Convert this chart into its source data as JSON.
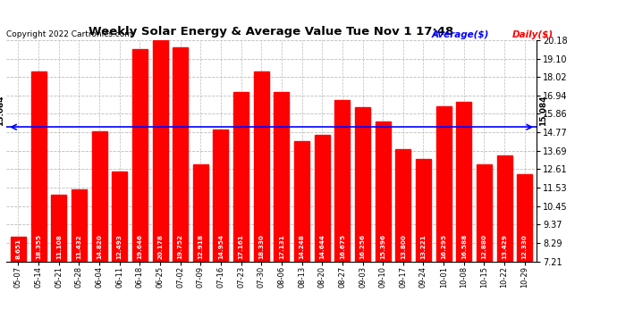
{
  "title": "Weekly Solar Energy & Average Value Tue Nov 1 17:48",
  "copyright": "Copyright 2022 Cartronics.com",
  "categories": [
    "05-07",
    "05-14",
    "05-21",
    "05-28",
    "06-04",
    "06-11",
    "06-18",
    "06-25",
    "07-02",
    "07-09",
    "07-16",
    "07-23",
    "07-30",
    "08-06",
    "08-13",
    "08-20",
    "08-27",
    "09-03",
    "09-10",
    "09-17",
    "09-24",
    "10-01",
    "10-08",
    "10-15",
    "10-22",
    "10-29"
  ],
  "values": [
    8.651,
    18.355,
    11.108,
    11.432,
    14.82,
    12.493,
    19.646,
    20.178,
    19.752,
    12.918,
    14.954,
    17.161,
    18.33,
    17.131,
    14.248,
    14.644,
    16.675,
    16.256,
    15.396,
    13.8,
    13.221,
    16.295,
    16.588,
    12.88,
    13.429,
    12.33
  ],
  "average": 15.084,
  "bar_color": "#ff0000",
  "average_line_color": "#0000ff",
  "background_color": "#ffffff",
  "grid_color": "#bbbbbb",
  "ylim_min": 7.21,
  "ylim_max": 20.18,
  "yticks": [
    7.21,
    8.29,
    9.37,
    10.45,
    11.53,
    12.61,
    13.69,
    14.77,
    15.86,
    16.94,
    18.02,
    19.1,
    20.18
  ],
  "average_label": "Average($)",
  "daily_label": "Daily($)",
  "avg_annotation": "15.084",
  "legend_avg_color": "#0000ff",
  "legend_daily_color": "#ff0000",
  "bar_width": 0.75
}
